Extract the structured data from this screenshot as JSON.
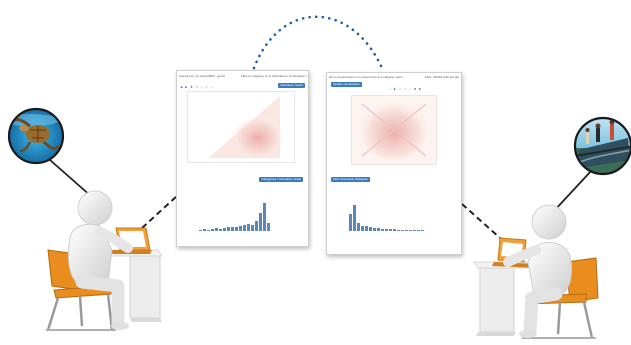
{
  "left_panel": {
    "select_text": "Use key for my order(ABC) : genre",
    "filter_text": "Filter by category is on individual or combination (S)",
    "primary_button": "Individual / select",
    "secondary_button": "Categories / zoomable / scale",
    "toolbar": "◀ ▶ ✚ ☐ ⌕ ⤢ ⌂"
  },
  "right_panel": {
    "select_text": "All co-occurrences in co-occurrence at a category pair node",
    "filter_text": "Filter: 2D/3D (with the pair data)",
    "primary_button": "Update visualization",
    "secondary_button": "Filter dimension histogram",
    "toolbar": "⌕ ✚ ☐ ⤢ ⌂ ◀ ▶"
  },
  "left_bars": [
    2,
    3,
    2,
    3,
    4,
    3,
    4,
    5,
    6,
    5,
    7,
    9,
    10,
    8,
    14,
    26,
    40,
    12
  ],
  "right_bars": [
    16,
    24,
    7,
    5,
    5,
    4,
    3,
    3,
    2,
    2,
    2,
    2,
    1,
    1,
    1,
    1,
    1,
    1,
    1
  ],
  "icons": [
    "turtle-photo-icon",
    "fishermen-photo-icon"
  ]
}
